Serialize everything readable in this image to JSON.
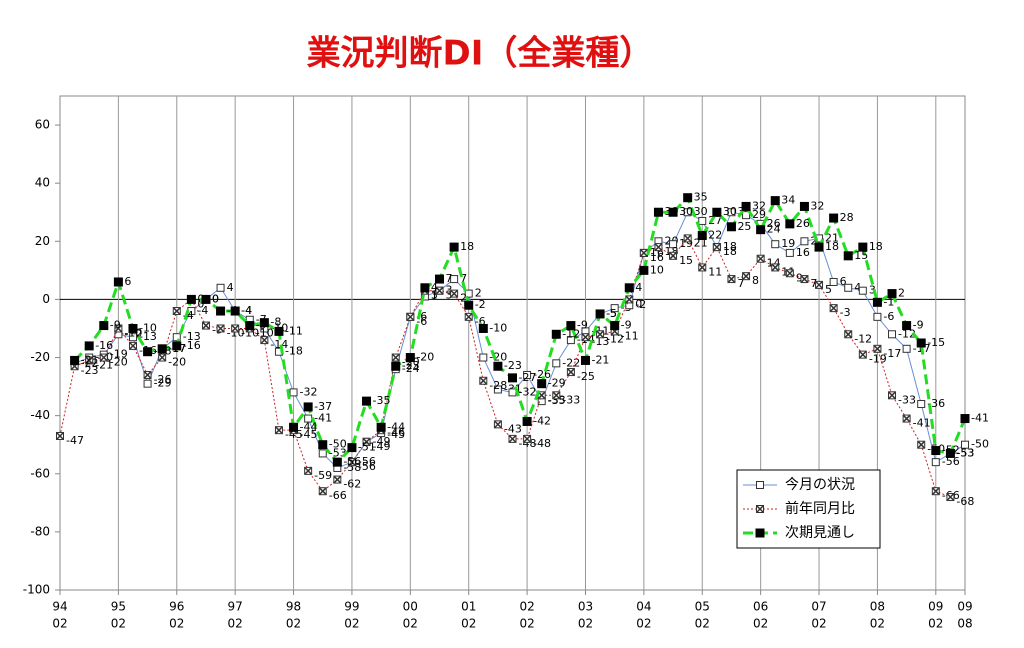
{
  "chart_data": {
    "type": "line",
    "title": "業況判断DI（全業種）",
    "categories": [
      [
        "94",
        "02"
      ],
      null,
      null,
      null,
      [
        "95",
        "02"
      ],
      null,
      null,
      null,
      [
        "96",
        "02"
      ],
      null,
      null,
      null,
      [
        "97",
        "02"
      ],
      null,
      null,
      null,
      [
        "98",
        "02"
      ],
      null,
      null,
      null,
      [
        "99",
        "02"
      ],
      null,
      null,
      null,
      [
        "00",
        "02"
      ],
      null,
      null,
      null,
      [
        "01",
        "02"
      ],
      null,
      null,
      null,
      [
        "02",
        "02"
      ],
      null,
      null,
      null,
      [
        "03",
        "02"
      ],
      null,
      null,
      null,
      [
        "04",
        "02"
      ],
      null,
      null,
      null,
      [
        "05",
        "02"
      ],
      null,
      null,
      null,
      [
        "06",
        "02"
      ],
      null,
      null,
      null,
      [
        "07",
        "02"
      ],
      null,
      null,
      null,
      [
        "08",
        "02"
      ],
      null,
      null,
      null,
      [
        "09",
        "02"
      ],
      null,
      [
        "09",
        "08"
      ]
    ],
    "series": [
      {
        "name": "今月の状況",
        "color": "#6a8fd8",
        "style": "solid",
        "values": [
          null,
          -22,
          -20,
          -19,
          -12,
          -13,
          -29,
          -17,
          -13,
          -4,
          0,
          4,
          -4,
          -7,
          -10,
          -18,
          -32,
          -41,
          -53,
          -58,
          -56,
          -49,
          -46,
          -24,
          -6,
          1,
          3,
          7,
          2,
          -20,
          -31,
          -32,
          -26,
          -35,
          -22,
          -14,
          -11,
          -5,
          -3,
          -2,
          16,
          20,
          19,
          30,
          27,
          18,
          30,
          29,
          26,
          19,
          16,
          20,
          21,
          6,
          4,
          3,
          -6,
          -12,
          -17,
          -36,
          -56,
          -53,
          -50
        ]
      },
      {
        "name": "前年同月比",
        "color": "#cc2222",
        "style": "dotted",
        "values": [
          -47,
          -23,
          -21,
          -20,
          -10,
          -16,
          -26,
          -20,
          -4,
          0,
          -9,
          -10,
          -10,
          -10,
          -14,
          -45,
          -45,
          -59,
          -66,
          -62,
          -56,
          -49,
          -45,
          -20,
          -6,
          3,
          3,
          2,
          -6,
          -28,
          -43,
          -48,
          -48,
          -33,
          -33,
          -25,
          -13,
          -12,
          -11,
          0,
          16,
          18,
          15,
          21,
          11,
          18,
          7,
          8,
          14,
          11,
          9,
          7,
          5,
          -3,
          -12,
          -19,
          -17,
          -33,
          -41,
          -50,
          -66,
          -68,
          null
        ]
      },
      {
        "name": "次期見通し",
        "color": "#22dd22",
        "style": "dashed",
        "values": [
          null,
          -21,
          -16,
          -9,
          6,
          -10,
          -18,
          -17,
          -16,
          0,
          0,
          -4,
          -4,
          -9,
          -8,
          -11,
          -44,
          -37,
          -50,
          -56,
          -51,
          -35,
          -44,
          -23,
          -20,
          4,
          7,
          18,
          -2,
          -10,
          -23,
          -27,
          -42,
          -29,
          -12,
          -9,
          -21,
          -5,
          -9,
          4,
          10,
          30,
          30,
          35,
          22,
          30,
          25,
          32,
          24,
          34,
          26,
          32,
          18,
          28,
          15,
          18,
          -1,
          2,
          -9,
          -15,
          -52,
          -53,
          -41
        ]
      }
    ],
    "ylim": [
      -100,
      70
    ],
    "yticks": [
      -100,
      -80,
      -60,
      -40,
      -20,
      0,
      20,
      40,
      60
    ],
    "grid": true
  }
}
